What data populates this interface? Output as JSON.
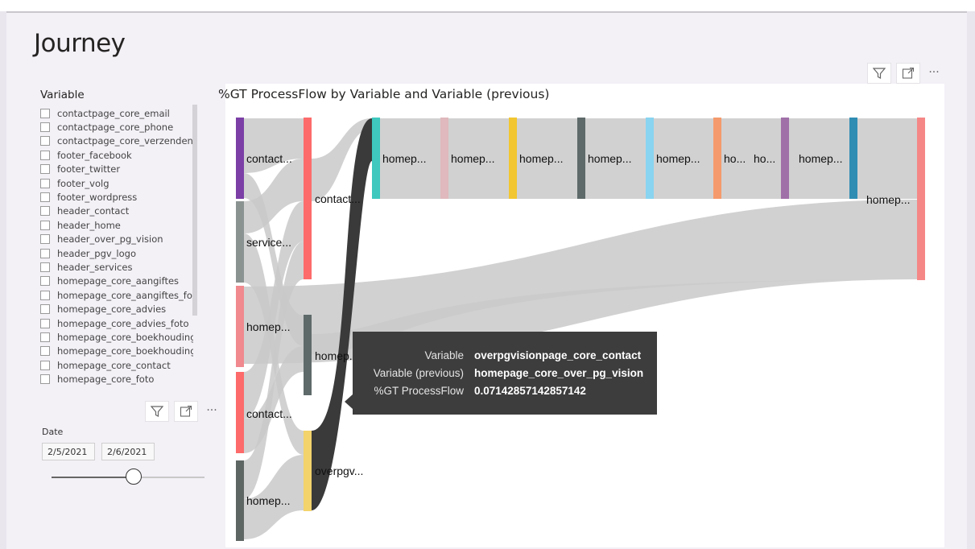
{
  "page": {
    "title": "Journey"
  },
  "slicer": {
    "title": "Variable",
    "items": [
      "contactpage_core_email",
      "contactpage_core_phone",
      "contactpage_core_verzenden",
      "footer_facebook",
      "footer_twitter",
      "footer_volg",
      "footer_wordpress",
      "header_contact",
      "header_home",
      "header_over_pg_vision",
      "header_pgv_logo",
      "header_services",
      "homepage_core_aangiftes",
      "homepage_core_aangiftes_foto",
      "homepage_core_advies",
      "homepage_core_advies_foto",
      "homepage_core_boekhouding",
      "homepage_core_boekhouding...",
      "homepage_core_contact",
      "homepage_core_foto"
    ]
  },
  "date_filter": {
    "label": "Date",
    "start": "2/5/2021",
    "end": "2/6/2021"
  },
  "visual_header_icons": {
    "filter": "filter-icon",
    "focus": "focus-mode-icon",
    "more": "more-options-icon",
    "more_glyph": "···"
  },
  "chart": {
    "title": "%GT ProcessFlow by Variable and Variable (previous)",
    "labels": {
      "c1a": "contact...",
      "c1b": "service...",
      "c1c": "homep...",
      "c1d": "contact...",
      "c1e": "homep...",
      "c2a": "contact...",
      "c2b": "homep...",
      "c2c": "overpgv...",
      "h1": "homep...",
      "h2": "homep...",
      "h3": "homep...",
      "h4": "homep...",
      "h5": "homep...",
      "h6": "ho...",
      "h7": "ho...",
      "h8": "homep...",
      "end": "homep..."
    },
    "colors": {
      "purple": "#7b3fa6",
      "gray": "#8b9391",
      "pink": "#f08a8f",
      "red": "#fd6b6b",
      "darkgray": "#5e6664",
      "yellow": "#f3d36b",
      "teal": "#3ec8be",
      "blush": "#dfb9bd",
      "gold": "#f2c630",
      "slate": "#5e6a69",
      "sky": "#89d4f0",
      "orange": "#f59a6c",
      "violet": "#a070a8",
      "blue": "#2f8db3",
      "salmon": "#f68787",
      "link": "#c9c9c9",
      "highlight": "#3a3a3a"
    }
  },
  "tooltip": {
    "rows": [
      {
        "key": "Variable",
        "value": "overpgvisionpage_core_contact"
      },
      {
        "key": "Variable (previous)",
        "value": "homepage_core_over_pg_vision"
      },
      {
        "key": "%GT ProcessFlow",
        "value": "0.07142857142857142"
      }
    ]
  }
}
